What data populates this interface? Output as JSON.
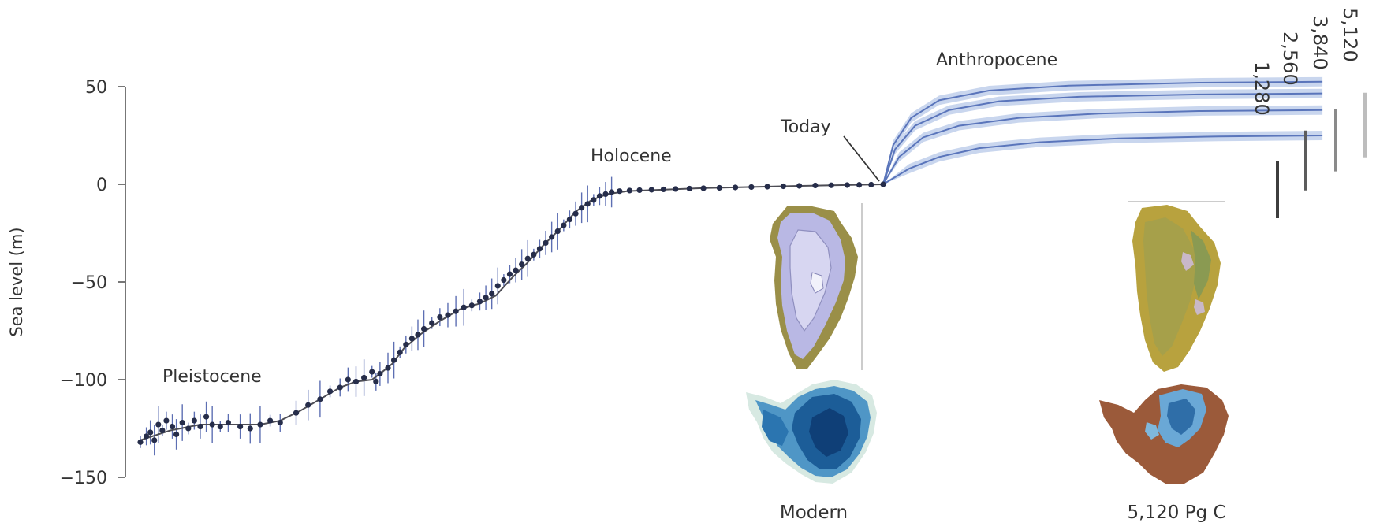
{
  "chart_data": {
    "type": "scatter",
    "ylabel": "Sea level (m)",
    "ylim": [
      -150,
      50
    ],
    "yticks": [
      50,
      0,
      -50,
      -100,
      -150
    ],
    "era_labels": [
      "Pleistocene",
      "Holocene",
      "Today",
      "Anthropocene"
    ],
    "reconstruction": {
      "points": [
        [
          0,
          -132
        ],
        [
          3,
          -129
        ],
        [
          5,
          -127
        ],
        [
          7,
          -131
        ],
        [
          9,
          -123
        ],
        [
          11,
          -126
        ],
        [
          13,
          -121
        ],
        [
          16,
          -124
        ],
        [
          18,
          -128
        ],
        [
          21,
          -122
        ],
        [
          24,
          -125
        ],
        [
          27,
          -121
        ],
        [
          30,
          -124
        ],
        [
          33,
          -119
        ],
        [
          36,
          -123
        ],
        [
          40,
          -124
        ],
        [
          44,
          -122
        ],
        [
          50,
          -124
        ],
        [
          55,
          -125
        ],
        [
          60,
          -123
        ],
        [
          65,
          -121
        ],
        [
          70,
          -122
        ],
        [
          78,
          -117
        ],
        [
          84,
          -113
        ],
        [
          90,
          -110
        ],
        [
          95,
          -106
        ],
        [
          100,
          -104
        ],
        [
          104,
          -100
        ],
        [
          108,
          -101
        ],
        [
          112,
          -99
        ],
        [
          116,
          -96
        ],
        [
          118,
          -101
        ],
        [
          120,
          -97
        ],
        [
          124,
          -94
        ],
        [
          127,
          -90
        ],
        [
          130,
          -86
        ],
        [
          133,
          -82
        ],
        [
          136,
          -79
        ],
        [
          139,
          -77
        ],
        [
          142,
          -74
        ],
        [
          146,
          -71
        ],
        [
          150,
          -68
        ],
        [
          154,
          -67
        ],
        [
          158,
          -65
        ],
        [
          162,
          -63
        ],
        [
          166,
          -62
        ],
        [
          170,
          -60
        ],
        [
          173,
          -58
        ],
        [
          176,
          -56
        ],
        [
          179,
          -52
        ],
        [
          182,
          -49
        ],
        [
          185,
          -46
        ],
        [
          188,
          -44
        ],
        [
          191,
          -41
        ],
        [
          194,
          -38
        ],
        [
          197,
          -36
        ],
        [
          200,
          -33
        ],
        [
          203,
          -30
        ],
        [
          206,
          -27
        ],
        [
          209,
          -24
        ],
        [
          212,
          -21
        ],
        [
          215,
          -18
        ],
        [
          218,
          -15
        ],
        [
          221,
          -12
        ],
        [
          224,
          -10
        ],
        [
          227,
          -8
        ],
        [
          230,
          -6
        ],
        [
          233,
          -5
        ],
        [
          236,
          -4
        ],
        [
          240,
          -3.5
        ],
        [
          245,
          -3.2
        ],
        [
          250,
          -3
        ],
        [
          256,
          -2.8
        ],
        [
          262,
          -2.6
        ],
        [
          268,
          -2.4
        ],
        [
          275,
          -2.2
        ],
        [
          282,
          -2
        ],
        [
          290,
          -1.8
        ],
        [
          298,
          -1.6
        ],
        [
          306,
          -1.4
        ],
        [
          314,
          -1.2
        ],
        [
          322,
          -1
        ],
        [
          330,
          -0.8
        ],
        [
          338,
          -0.6
        ],
        [
          346,
          -0.5
        ],
        [
          354,
          -0.4
        ],
        [
          360,
          -0.3
        ],
        [
          366,
          -0.2
        ],
        [
          372,
          0
        ]
      ],
      "fit": [
        [
          0,
          -131
        ],
        [
          15,
          -126
        ],
        [
          30,
          -123
        ],
        [
          45,
          -123
        ],
        [
          60,
          -123
        ],
        [
          70,
          -121
        ],
        [
          80,
          -116
        ],
        [
          90,
          -110
        ],
        [
          100,
          -104
        ],
        [
          108,
          -101
        ],
        [
          116,
          -100
        ],
        [
          120,
          -97
        ],
        [
          126,
          -92
        ],
        [
          132,
          -84
        ],
        [
          140,
          -77
        ],
        [
          150,
          -70
        ],
        [
          160,
          -64
        ],
        [
          170,
          -61
        ],
        [
          178,
          -57
        ],
        [
          186,
          -48
        ],
        [
          194,
          -40
        ],
        [
          202,
          -31
        ],
        [
          210,
          -23
        ],
        [
          218,
          -14
        ],
        [
          226,
          -8
        ],
        [
          234,
          -5
        ],
        [
          244,
          -3.5
        ],
        [
          260,
          -2.8
        ],
        [
          280,
          -2
        ],
        [
          300,
          -1.5
        ],
        [
          330,
          -0.8
        ],
        [
          372,
          0
        ]
      ]
    },
    "scenarios": [
      {
        "name": "1,280",
        "values": [
          [
            372,
            0
          ],
          [
            385,
            8
          ],
          [
            400,
            14
          ],
          [
            420,
            18.5
          ],
          [
            450,
            21.5
          ],
          [
            490,
            23.5
          ],
          [
            540,
            24.5
          ],
          [
            592,
            25
          ]
        ]
      },
      {
        "name": "2,560",
        "values": [
          [
            372,
            0
          ],
          [
            380,
            14
          ],
          [
            392,
            24
          ],
          [
            410,
            30
          ],
          [
            440,
            34
          ],
          [
            480,
            36.2
          ],
          [
            530,
            37.5
          ],
          [
            592,
            38
          ]
        ]
      },
      {
        "name": "3,840",
        "values": [
          [
            372,
            0
          ],
          [
            378,
            18
          ],
          [
            388,
            30
          ],
          [
            405,
            38
          ],
          [
            430,
            42.5
          ],
          [
            470,
            44.8
          ],
          [
            530,
            46
          ],
          [
            592,
            46.5
          ]
        ]
      },
      {
        "name": "5,120",
        "values": [
          [
            372,
            0
          ],
          [
            377,
            20
          ],
          [
            386,
            34
          ],
          [
            400,
            43
          ],
          [
            425,
            48
          ],
          [
            465,
            50.5
          ],
          [
            530,
            52
          ],
          [
            592,
            52.5
          ]
        ]
      }
    ],
    "colors": {
      "points": "#262d4a",
      "errorbars": "#5d6fb3",
      "fit": "#4d4d55",
      "scenario_line": "#5a75bb",
      "scenario_band": "#b7c8e8",
      "scenario_bars": [
        "#3d3d3d",
        "#5c5c5c",
        "#8a8a8a",
        "#bdbdbd"
      ]
    },
    "maps": {
      "modern_label": "Modern",
      "future_label": "5,120 Pg C",
      "modern_greenland": "mostly ice-covered",
      "modern_antarctica": "fully ice-covered",
      "future_greenland": "mostly ice-free",
      "future_antarctica": "west ice-free, east partially ice-covered"
    }
  }
}
